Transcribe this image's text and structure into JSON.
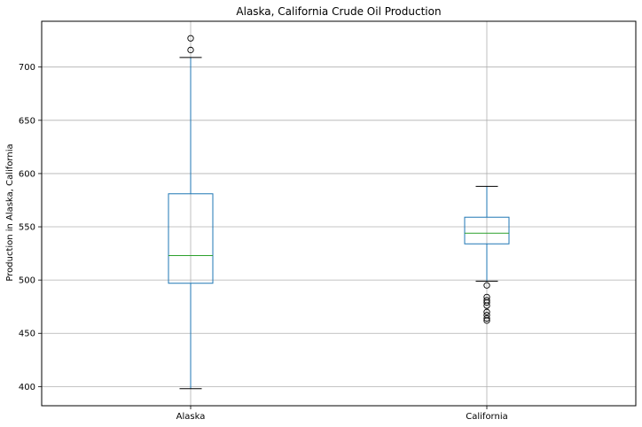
{
  "chart_data": {
    "type": "box",
    "title": "Alaska, California Crude Oil Production",
    "xlabel": "",
    "ylabel": "Production in Alaska, California",
    "categories": [
      "Alaska",
      "California"
    ],
    "ylim": [
      382,
      743
    ],
    "yticks": [
      400,
      450,
      500,
      550,
      600,
      650,
      700
    ],
    "grid": true,
    "boxes": [
      {
        "name": "Alaska",
        "whisker_low": 398,
        "q1": 497,
        "median": 523,
        "q3": 581,
        "whisker_high": 709,
        "outliers": [
          716,
          727
        ]
      },
      {
        "name": "California",
        "whisker_low": 499,
        "q1": 534,
        "median": 544,
        "q3": 559,
        "whisker_high": 588,
        "outliers": [
          495,
          484,
          481,
          479,
          476,
          470,
          467,
          464,
          462
        ]
      }
    ],
    "colors": {
      "box": "#1f77b4",
      "median": "#2ca02c",
      "cap": "#000000",
      "grid": "#b0b0b0"
    }
  }
}
